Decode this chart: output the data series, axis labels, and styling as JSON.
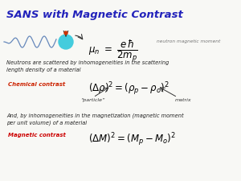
{
  "title": "SANS with Magnetic Contrast",
  "title_color": "#2222bb",
  "title_fontsize": 9.5,
  "bg_color": "#f8f8f5",
  "neutron_label": "neutron magnetic moment",
  "neutron_label_color": "#777777",
  "text1": "Neutrons are scattered by inhomogeneities in the scattering\nlength density of a material",
  "text1_color": "#222222",
  "text1_fontsize": 4.8,
  "chem_label": "Chemical contrast",
  "chem_label_color": "#cc2200",
  "particle_label": "“particle”",
  "matrix_label": "matrix",
  "text2": "And, by inhomogeneities in the magnetization (magnetic moment\nper unit volume) of a material",
  "text2_color": "#222222",
  "text2_fontsize": 4.8,
  "mag_label": "Magnetic contrast",
  "mag_label_color": "#cc0000"
}
